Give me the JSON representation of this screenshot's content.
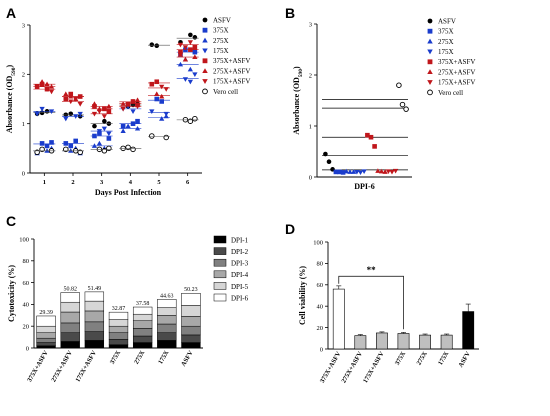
{
  "panels": {
    "a": "A",
    "b": "B",
    "c": "C",
    "d": "D"
  },
  "chart_data": [
    {
      "id": "A",
      "type": "scatter",
      "xlabel": "Days Post Infection",
      "ylabel_main": "Absorbance (OD",
      "ylabel_sub": "590",
      "ylabel_close": ")",
      "xlim": [
        0.5,
        6.5
      ],
      "ylim": [
        0,
        3
      ],
      "x_ticks": [
        "1",
        "2",
        "3",
        "4",
        "5",
        "6"
      ],
      "y_ticks": [
        "0",
        "1",
        "2",
        "3"
      ],
      "series": [
        {
          "name": "ASFV",
          "marker": "circle",
          "color": "#000000",
          "points": [
            [
              1,
              1.2
            ],
            [
              1,
              1.22
            ],
            [
              1,
              1.25
            ],
            [
              2,
              1.15
            ],
            [
              2,
              1.18
            ],
            [
              2,
              1.2
            ],
            [
              3,
              1.05
            ],
            [
              3,
              1.0
            ],
            [
              3,
              0.95
            ],
            [
              4,
              1.35
            ],
            [
              4,
              1.38
            ],
            [
              4,
              1.4
            ],
            [
              5,
              2.6
            ],
            [
              5,
              2.58
            ],
            [
              6,
              2.8
            ],
            [
              6,
              2.75
            ],
            [
              6,
              2.65
            ]
          ]
        },
        {
          "name": "375X",
          "marker": "square",
          "color": "#1a3ccc",
          "points": [
            [
              1,
              0.6
            ],
            [
              1,
              0.55
            ],
            [
              1,
              0.62
            ],
            [
              2,
              0.6
            ],
            [
              2,
              0.55
            ],
            [
              2,
              0.65
            ],
            [
              3,
              0.7
            ],
            [
              3,
              0.75
            ],
            [
              3,
              0.8
            ],
            [
              4,
              1.0
            ],
            [
              4,
              1.05
            ],
            [
              4,
              0.95
            ],
            [
              5,
              1.5
            ],
            [
              5,
              1.45
            ],
            [
              6,
              2.45
            ],
            [
              6,
              2.4
            ],
            [
              6,
              2.5
            ]
          ]
        },
        {
          "name": "275X",
          "marker": "triangle-up",
          "color": "#1a3ccc",
          "points": [
            [
              1,
              0.45
            ],
            [
              1,
              0.5
            ],
            [
              1,
              0.4
            ],
            [
              2,
              0.45
            ],
            [
              2,
              0.5
            ],
            [
              2,
              0.4
            ],
            [
              3,
              0.55
            ],
            [
              3,
              0.6
            ],
            [
              3,
              0.5
            ],
            [
              4,
              0.9
            ],
            [
              4,
              0.85
            ],
            [
              4,
              0.95
            ],
            [
              5,
              1.1
            ],
            [
              5,
              1.15
            ],
            [
              6,
              2.2
            ],
            [
              6,
              2.3
            ],
            [
              6,
              2.1
            ]
          ]
        },
        {
          "name": "175X",
          "marker": "triangle-down",
          "color": "#1a3ccc",
          "points": [
            [
              1,
              1.25
            ],
            [
              1,
              1.2
            ],
            [
              1,
              1.3
            ],
            [
              2,
              1.15
            ],
            [
              2,
              1.2
            ],
            [
              2,
              1.1
            ],
            [
              3,
              0.85
            ],
            [
              3,
              0.9
            ],
            [
              3,
              0.8
            ],
            [
              4,
              1.3
            ],
            [
              4,
              1.35
            ],
            [
              4,
              1.25
            ],
            [
              5,
              1.2
            ],
            [
              5,
              1.25
            ],
            [
              6,
              1.9
            ],
            [
              6,
              1.85
            ],
            [
              6,
              2.0
            ]
          ]
        },
        {
          "name": "375X+ASFV",
          "marker": "square",
          "color": "#c0161b",
          "points": [
            [
              1,
              1.75
            ],
            [
              1,
              1.8
            ],
            [
              1,
              1.7
            ],
            [
              2,
              1.55
            ],
            [
              2,
              1.5
            ],
            [
              2,
              1.6
            ],
            [
              3,
              1.3
            ],
            [
              3,
              1.25
            ],
            [
              3,
              1.35
            ],
            [
              4,
              1.4
            ],
            [
              4,
              1.45
            ],
            [
              4,
              1.38
            ],
            [
              5,
              1.8
            ],
            [
              5,
              1.85
            ],
            [
              6,
              2.5
            ],
            [
              6,
              2.55
            ],
            [
              6,
              2.45
            ]
          ]
        },
        {
          "name": "275X+ASFV",
          "marker": "triangle-up",
          "color": "#c0161b",
          "points": [
            [
              1,
              1.85
            ],
            [
              1,
              1.8
            ],
            [
              1,
              1.75
            ],
            [
              2,
              1.6
            ],
            [
              2,
              1.55
            ],
            [
              2,
              1.5
            ],
            [
              3,
              1.35
            ],
            [
              3,
              1.4
            ],
            [
              3,
              1.3
            ],
            [
              4,
              1.45
            ],
            [
              4,
              1.48
            ],
            [
              4,
              1.4
            ],
            [
              5,
              1.6
            ],
            [
              5,
              1.55
            ],
            [
              6,
              2.35
            ],
            [
              6,
              2.4
            ],
            [
              6,
              2.3
            ]
          ]
        },
        {
          "name": "175X+ASFV",
          "marker": "triangle-down",
          "color": "#c0161b",
          "points": [
            [
              1,
              1.7
            ],
            [
              1,
              1.65
            ],
            [
              1,
              1.75
            ],
            [
              2,
              1.45
            ],
            [
              2,
              1.5
            ],
            [
              2,
              1.4
            ],
            [
              3,
              1.2
            ],
            [
              3,
              1.25
            ],
            [
              3,
              1.15
            ],
            [
              4,
              1.35
            ],
            [
              4,
              1.3
            ],
            [
              4,
              1.4
            ],
            [
              5,
              1.75
            ],
            [
              5,
              1.7
            ],
            [
              6,
              2.6
            ],
            [
              6,
              2.55
            ],
            [
              6,
              2.65
            ]
          ]
        },
        {
          "name": "Vero cell",
          "marker": "circle-open",
          "color": "#000000",
          "points": [
            [
              1,
              0.45
            ],
            [
              1,
              0.42
            ],
            [
              1,
              0.48
            ],
            [
              2,
              0.45
            ],
            [
              2,
              0.42
            ],
            [
              2,
              0.48
            ],
            [
              3,
              0.48
            ],
            [
              3,
              0.45
            ],
            [
              3,
              0.5
            ],
            [
              4,
              0.5
            ],
            [
              4,
              0.52
            ],
            [
              4,
              0.48
            ],
            [
              5,
              0.72
            ],
            [
              5,
              0.75
            ],
            [
              6,
              1.08
            ],
            [
              6,
              1.05
            ],
            [
              6,
              1.1
            ]
          ]
        }
      ]
    },
    {
      "id": "B",
      "type": "scatter",
      "xlabel": "DPI-6",
      "ylabel_main": "Absorbance (OD",
      "ylabel_sub": "590",
      "ylabel_close": ")",
      "ylim": [
        0,
        3
      ],
      "y_ticks": [
        "0",
        "1",
        "2",
        "3"
      ],
      "ref_lines": [
        1.52,
        1.35,
        0.78,
        0.42,
        0.14
      ],
      "series": [
        {
          "name": "ASFV",
          "marker": "circle",
          "color": "#000000",
          "values": [
            0.45,
            0.3,
            0.15
          ]
        },
        {
          "name": "375X",
          "marker": "square",
          "color": "#1a3ccc",
          "values": [
            0.1,
            0.1,
            0.09
          ]
        },
        {
          "name": "275X",
          "marker": "triangle-up",
          "color": "#1a3ccc",
          "values": [
            0.11,
            0.1,
            0.1
          ]
        },
        {
          "name": "175X",
          "marker": "triangle-down",
          "color": "#1a3ccc",
          "values": [
            0.1,
            0.09,
            0.11
          ]
        },
        {
          "name": "375X+ASFV",
          "marker": "square",
          "color": "#c0161b",
          "values": [
            0.82,
            0.78,
            0.6
          ]
        },
        {
          "name": "275X+ASFV",
          "marker": "triangle-up",
          "color": "#c0161b",
          "values": [
            0.12,
            0.11,
            0.1
          ]
        },
        {
          "name": "175X+ASFV",
          "marker": "triangle-down",
          "color": "#c0161b",
          "values": [
            0.11,
            0.1,
            0.12
          ]
        },
        {
          "name": "Vero cell",
          "marker": "circle-open",
          "color": "#000000",
          "values": [
            1.8,
            1.42,
            1.33
          ]
        }
      ]
    },
    {
      "id": "C",
      "type": "bar",
      "stacked": true,
      "ylabel": "Cytotoxicity (%)",
      "ylim": [
        0,
        100
      ],
      "y_ticks": [
        "0",
        "20",
        "40",
        "60",
        "80",
        "100"
      ],
      "categories": [
        "375X+ASFV",
        "275X+ASFV",
        "175X+ASFV",
        "375X",
        "275X",
        "175X",
        "ASFV"
      ],
      "totals": [
        "29.39",
        "50.82",
        "51.49",
        "32.87",
        "37.58",
        "44.63",
        "50.23"
      ],
      "series": [
        {
          "name": "DPI-1",
          "color": "#000000",
          "values": [
            2,
            6,
            7,
            3,
            5,
            7,
            5
          ]
        },
        {
          "name": "DPI-2",
          "color": "#4a4a4a",
          "values": [
            3,
            8,
            8,
            5,
            6,
            7,
            7
          ]
        },
        {
          "name": "DPI-3",
          "color": "#808080",
          "values": [
            4,
            9,
            9,
            6,
            7,
            8,
            8
          ]
        },
        {
          "name": "DPI-4",
          "color": "#a8a8a8",
          "values": [
            5,
            10,
            10,
            6,
            7,
            8,
            9
          ]
        },
        {
          "name": "DPI-5",
          "color": "#d6d6d6",
          "values": [
            6,
            9,
            9,
            6,
            6,
            7,
            10
          ]
        },
        {
          "name": "DPI-6",
          "color": "#ffffff",
          "values": [
            9.39,
            8.82,
            8.49,
            6.87,
            6.58,
            7.63,
            11.23
          ]
        }
      ]
    },
    {
      "id": "D",
      "type": "bar",
      "ylabel": "Cell viability (%)",
      "ylim": [
        0,
        100
      ],
      "y_ticks": [
        "0",
        "20",
        "40",
        "60",
        "80",
        "100"
      ],
      "categories": [
        "375X+ASFV",
        "275X+ASFV",
        "175X+ASFV",
        "375X",
        "275X",
        "175X",
        "ASFV"
      ],
      "values": [
        56,
        12.5,
        15,
        14.5,
        13,
        13,
        35
      ],
      "errors": [
        3,
        1,
        1,
        1,
        1,
        1,
        7
      ],
      "colors": [
        "#ffffff",
        "#bfbfbf",
        "#bfbfbf",
        "#bfbfbf",
        "#bfbfbf",
        "#bfbfbf",
        "#000000"
      ],
      "significance": {
        "label": "**",
        "from": 0,
        "to": 3,
        "y": 68
      }
    }
  ]
}
